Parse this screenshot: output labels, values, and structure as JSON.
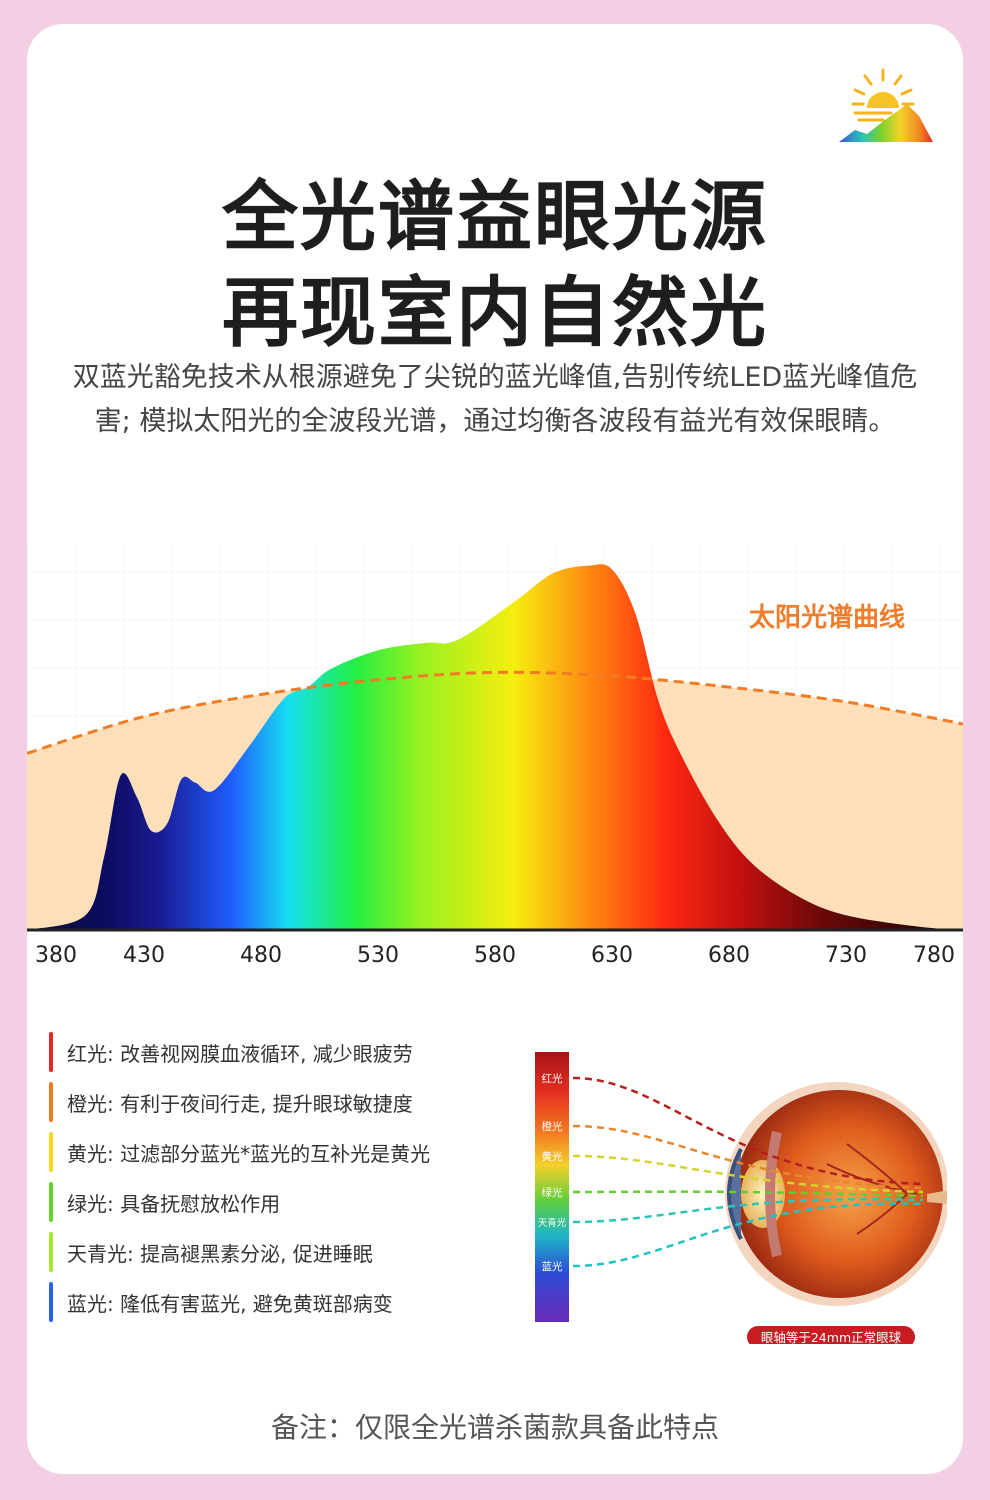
{
  "title_line1": "全光谱益眼光源",
  "title_line2": "再现室内自然光",
  "description": "双蓝光豁免技术从根源避免了尖锐的蓝光峰值,告别传统LED蓝光峰值危害; 模拟太阳光的全波段光谱，通过均衡各波段有益光有效保眼睛。",
  "chart_data": {
    "type": "area",
    "title": "",
    "xlabel": "",
    "ylabel": "",
    "x_ticks": [
      380,
      430,
      480,
      530,
      580,
      630,
      680,
      730,
      780
    ],
    "xlim": [
      380,
      780
    ],
    "ylim": [
      0,
      1
    ],
    "series": [
      {
        "name": "",
        "x": [
          380,
          405,
          413,
          420,
          427,
          433,
          440,
          446,
          452,
          460,
          475,
          490,
          500,
          510,
          530,
          550,
          560,
          570,
          590,
          605,
          620,
          630,
          640,
          650,
          660,
          675,
          690,
          710,
          730,
          760,
          780
        ],
        "y": [
          0,
          0.04,
          0.2,
          0.42,
          0.36,
          0.27,
          0.29,
          0.41,
          0.4,
          0.38,
          0.5,
          0.63,
          0.66,
          0.71,
          0.76,
          0.78,
          0.78,
          0.81,
          0.9,
          0.97,
          0.99,
          0.98,
          0.86,
          0.62,
          0.47,
          0.3,
          0.18,
          0.09,
          0.04,
          0.01,
          0
        ]
      },
      {
        "name": "太阳光谱曲线",
        "x": [
          380,
          430,
          480,
          530,
          580,
          630,
          680,
          730,
          780
        ],
        "y": [
          0.48,
          0.58,
          0.64,
          0.68,
          0.7,
          0.69,
          0.66,
          0.62,
          0.56
        ]
      }
    ],
    "annotations": [
      "太阳光谱曲线"
    ]
  },
  "legend": [
    {
      "text": "红光: 改善视网膜血液循环, 减少眼疲劳",
      "color": "#e32a24"
    },
    {
      "text": "橙光: 有利于夜间行走, 提升眼球敏捷度",
      "color": "#f07a22"
    },
    {
      "text": "黄光: 过滤部分蓝光*蓝光的互补光是黄光",
      "color": "#f6d81c"
    },
    {
      "text": "绿光: 具备抚慰放松作用",
      "color": "#66d42b"
    },
    {
      "text": "天青光: 提高褪黑素分泌, 促进睡眠",
      "color": "#a6e62f"
    },
    {
      "text": "蓝光: 隆低有害蓝光, 避免黄斑部病变",
      "color": "#2b62e3"
    }
  ],
  "eye": {
    "labels": [
      "红光",
      "橙光",
      "黄光",
      "绿光",
      "天青光",
      "蓝光"
    ],
    "line_colors": [
      "#b51f1f",
      "#e8872a",
      "#d4d42c",
      "#66cc33",
      "#2bc6b8",
      "#21c2c2"
    ],
    "badge": "眼轴等于24mm正常眼球"
  },
  "note": "备注：仅限全光谱杀菌款具备此特点"
}
